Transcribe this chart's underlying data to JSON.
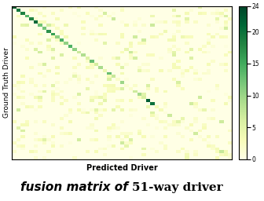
{
  "n_classes": 51,
  "vmin": 0,
  "vmax": 24,
  "colormap": "YlGn",
  "xlabel": "Predicted Driver",
  "ylabel": "Ground Truth Driver",
  "colorbar_ticks": [
    0,
    5,
    10,
    15,
    20,
    24
  ],
  "xlabel_fontsize": 7,
  "ylabel_fontsize": 6.5,
  "seed": 7,
  "background_color": "#ffffff",
  "figure_width": 3.36,
  "figure_height": 2.56,
  "dpi": 100
}
